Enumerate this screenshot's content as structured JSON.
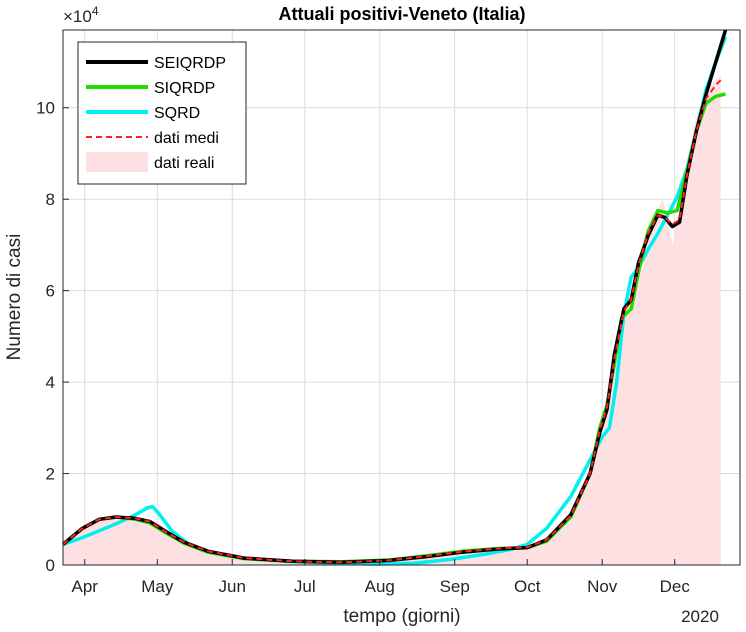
{
  "chart_data": {
    "type": "line",
    "title": "Attuali positivi-Veneto (Italia)",
    "xlabel": "tempo (giorni)",
    "ylabel": "Numero di casi",
    "y_exponent_label": "×10",
    "y_exponent_power": "4",
    "year_label": "2020",
    "x_unit": "days since 2020-03-24",
    "xlim": [
      0,
      280
    ],
    "ylim": [
      0,
      11.7
    ],
    "y_scale_note": "values in units of 10^4 cases",
    "grid": true,
    "legend_position": "top-left",
    "x_ticks": [
      {
        "label": "Apr",
        "x": 9
      },
      {
        "label": "May",
        "x": 39
      },
      {
        "label": "Jun",
        "x": 70
      },
      {
        "label": "Jul",
        "x": 100
      },
      {
        "label": "Aug",
        "x": 131
      },
      {
        "label": "Sep",
        "x": 162
      },
      {
        "label": "Oct",
        "x": 192
      },
      {
        "label": "Nov",
        "x": 223
      },
      {
        "label": "Dec",
        "x": 253
      }
    ],
    "y_ticks": [
      {
        "label": "0",
        "y": 0
      },
      {
        "label": "2",
        "y": 2
      },
      {
        "label": "4",
        "y": 4
      },
      {
        "label": "6",
        "y": 6
      },
      {
        "label": "8",
        "y": 8
      },
      {
        "label": "10",
        "y": 10
      }
    ],
    "series": [
      {
        "name": "dati reali",
        "style": "area",
        "color": "#fde0e2",
        "points": [
          [
            0,
            0.45
          ],
          [
            10,
            0.85
          ],
          [
            20,
            1.05
          ],
          [
            30,
            1.02
          ],
          [
            38,
            0.95
          ],
          [
            48,
            0.6
          ],
          [
            60,
            0.35
          ],
          [
            75,
            0.18
          ],
          [
            90,
            0.1
          ],
          [
            110,
            0.06
          ],
          [
            130,
            0.07
          ],
          [
            145,
            0.12
          ],
          [
            160,
            0.22
          ],
          [
            175,
            0.3
          ],
          [
            192,
            0.38
          ],
          [
            200,
            0.5
          ],
          [
            210,
            0.95
          ],
          [
            218,
            1.9
          ],
          [
            223,
            3.0
          ],
          [
            226,
            3.5
          ],
          [
            229,
            4.6
          ],
          [
            232,
            5.6
          ],
          [
            236,
            6.2
          ],
          [
            240,
            6.5
          ],
          [
            243,
            7.4
          ],
          [
            248,
            8.0
          ],
          [
            250,
            7.6
          ],
          [
            252,
            7.0
          ],
          [
            255,
            7.8
          ],
          [
            258,
            8.8
          ],
          [
            262,
            9.8
          ],
          [
            266,
            10.4
          ],
          [
            270,
            10.6
          ],
          [
            272,
            10.7
          ],
          [
            272,
            0
          ],
          [
            0,
            0
          ]
        ]
      },
      {
        "name": "SEIQRDP",
        "style": "solid",
        "color": "#000000",
        "points": [
          [
            0,
            0.45
          ],
          [
            8,
            0.8
          ],
          [
            15,
            1.0
          ],
          [
            22,
            1.05
          ],
          [
            30,
            1.02
          ],
          [
            36,
            0.95
          ],
          [
            42,
            0.75
          ],
          [
            50,
            0.5
          ],
          [
            60,
            0.3
          ],
          [
            75,
            0.15
          ],
          [
            95,
            0.08
          ],
          [
            115,
            0.06
          ],
          [
            135,
            0.1
          ],
          [
            150,
            0.18
          ],
          [
            165,
            0.28
          ],
          [
            180,
            0.35
          ],
          [
            192,
            0.38
          ],
          [
            200,
            0.55
          ],
          [
            210,
            1.1
          ],
          [
            218,
            2.0
          ],
          [
            222,
            2.9
          ],
          [
            225,
            3.4
          ],
          [
            228,
            4.6
          ],
          [
            232,
            5.6
          ],
          [
            235,
            5.8
          ],
          [
            238,
            6.6
          ],
          [
            242,
            7.2
          ],
          [
            246,
            7.65
          ],
          [
            249,
            7.6
          ],
          [
            252,
            7.4
          ],
          [
            255,
            7.5
          ],
          [
            258,
            8.5
          ],
          [
            262,
            9.5
          ],
          [
            266,
            10.3
          ],
          [
            270,
            11.0
          ],
          [
            274,
            11.7
          ]
        ]
      },
      {
        "name": "SIQRDP",
        "style": "solid",
        "color": "#22dd00",
        "points": [
          [
            0,
            0.45
          ],
          [
            8,
            0.8
          ],
          [
            15,
            1.0
          ],
          [
            22,
            1.05
          ],
          [
            30,
            1.0
          ],
          [
            36,
            0.92
          ],
          [
            42,
            0.72
          ],
          [
            50,
            0.48
          ],
          [
            60,
            0.28
          ],
          [
            75,
            0.14
          ],
          [
            95,
            0.08
          ],
          [
            115,
            0.07
          ],
          [
            135,
            0.11
          ],
          [
            150,
            0.2
          ],
          [
            165,
            0.3
          ],
          [
            180,
            0.36
          ],
          [
            192,
            0.38
          ],
          [
            200,
            0.52
          ],
          [
            210,
            1.05
          ],
          [
            218,
            2.0
          ],
          [
            222,
            3.0
          ],
          [
            225,
            3.5
          ],
          [
            228,
            4.4
          ],
          [
            231,
            5.4
          ],
          [
            235,
            5.6
          ],
          [
            238,
            6.4
          ],
          [
            242,
            7.3
          ],
          [
            246,
            7.75
          ],
          [
            250,
            7.7
          ],
          [
            254,
            7.75
          ],
          [
            258,
            8.6
          ],
          [
            262,
            9.5
          ],
          [
            266,
            10.1
          ],
          [
            270,
            10.25
          ],
          [
            274,
            10.3
          ]
        ]
      },
      {
        "name": "SQRD",
        "style": "solid",
        "color": "#00f0f0",
        "points": [
          [
            0,
            0.45
          ],
          [
            8,
            0.6
          ],
          [
            15,
            0.75
          ],
          [
            22,
            0.9
          ],
          [
            30,
            1.1
          ],
          [
            35,
            1.25
          ],
          [
            37,
            1.28
          ],
          [
            40,
            1.1
          ],
          [
            45,
            0.75
          ],
          [
            52,
            0.45
          ],
          [
            60,
            0.28
          ],
          [
            75,
            0.14
          ],
          [
            95,
            0.07
          ],
          [
            115,
            0.04
          ],
          [
            130,
            0.02
          ],
          [
            145,
            0.04
          ],
          [
            160,
            0.12
          ],
          [
            175,
            0.24
          ],
          [
            185,
            0.34
          ],
          [
            192,
            0.45
          ],
          [
            200,
            0.8
          ],
          [
            210,
            1.5
          ],
          [
            218,
            2.3
          ],
          [
            223,
            2.8
          ],
          [
            226,
            3.0
          ],
          [
            229,
            4.0
          ],
          [
            232,
            5.5
          ],
          [
            235,
            6.3
          ],
          [
            238,
            6.5
          ],
          [
            242,
            6.9
          ],
          [
            246,
            7.25
          ],
          [
            250,
            7.65
          ],
          [
            254,
            8.05
          ],
          [
            258,
            8.65
          ],
          [
            262,
            9.5
          ],
          [
            266,
            10.4
          ],
          [
            270,
            11.0
          ],
          [
            274,
            11.55
          ]
        ]
      },
      {
        "name": "dati medi",
        "style": "dashed",
        "color": "#ff2020",
        "points": [
          [
            0,
            0.45
          ],
          [
            8,
            0.8
          ],
          [
            15,
            1.0
          ],
          [
            22,
            1.05
          ],
          [
            30,
            1.02
          ],
          [
            36,
            0.95
          ],
          [
            42,
            0.74
          ],
          [
            50,
            0.5
          ],
          [
            60,
            0.3
          ],
          [
            75,
            0.15
          ],
          [
            95,
            0.08
          ],
          [
            115,
            0.06
          ],
          [
            135,
            0.1
          ],
          [
            150,
            0.19
          ],
          [
            165,
            0.29
          ],
          [
            180,
            0.36
          ],
          [
            192,
            0.39
          ],
          [
            200,
            0.55
          ],
          [
            210,
            1.08
          ],
          [
            218,
            2.0
          ],
          [
            222,
            2.95
          ],
          [
            225,
            3.45
          ],
          [
            228,
            4.5
          ],
          [
            232,
            5.55
          ],
          [
            235,
            5.8
          ],
          [
            238,
            6.55
          ],
          [
            242,
            7.25
          ],
          [
            246,
            7.65
          ],
          [
            249,
            7.6
          ],
          [
            252,
            7.45
          ],
          [
            255,
            7.55
          ],
          [
            258,
            8.5
          ],
          [
            262,
            9.5
          ],
          [
            266,
            10.2
          ],
          [
            270,
            10.5
          ],
          [
            272,
            10.6
          ]
        ]
      }
    ],
    "legend_order": [
      "SEIQRDP",
      "SIQRDP",
      "SQRD",
      "dati medi",
      "dati reali"
    ]
  }
}
